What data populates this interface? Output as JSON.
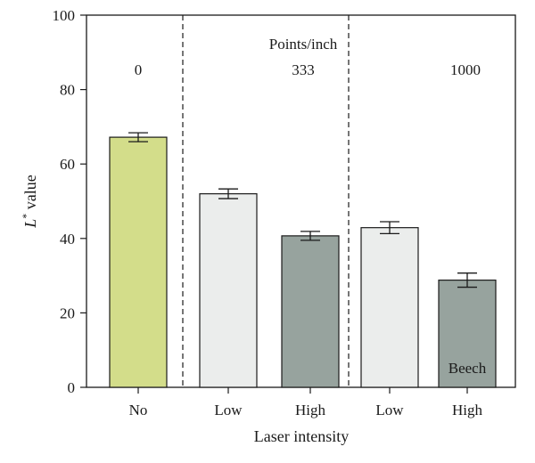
{
  "chart_data": {
    "type": "bar",
    "categories": [
      "No",
      "Low",
      "High",
      "Low",
      "High"
    ],
    "values": [
      67.2,
      52.0,
      40.7,
      42.9,
      28.8
    ],
    "errors": [
      1.2,
      1.3,
      1.2,
      1.6,
      1.9
    ],
    "bar_colors": [
      "#d3dd8a",
      "#ebedec",
      "#97a39e",
      "#ebedec",
      "#97a39e"
    ],
    "xlabel": "Laser intensity",
    "ylabel_main": "L",
    "ylabel_sup": "*",
    "ylabel_rest": " value",
    "ylim": [
      0,
      100
    ],
    "yticks": [
      0,
      20,
      40,
      60,
      80,
      100
    ],
    "group_header": "Points/inch",
    "group_labels": [
      "0",
      "333",
      "1000"
    ],
    "group_separators_after_index": [
      0,
      2
    ],
    "annotation": "Beech",
    "grid": false
  }
}
